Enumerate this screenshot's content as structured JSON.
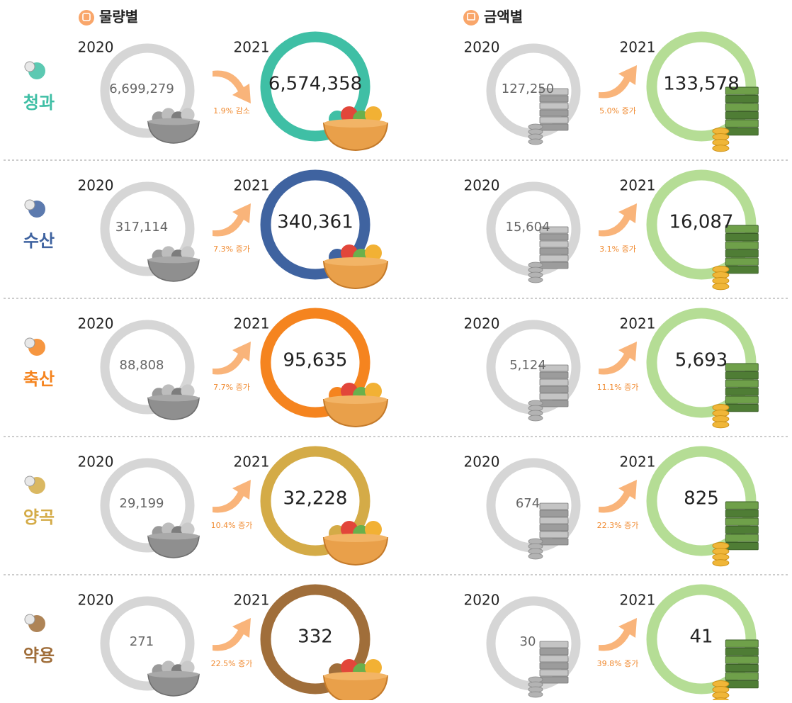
{
  "headers": {
    "volume": "물량별",
    "amount": "금액별"
  },
  "years": [
    "2020",
    "2021"
  ],
  "rows": [
    {
      "category": "청과",
      "color": "#3fbfa5",
      "volume": {
        "y2020": "6,699,279",
        "y2021": "6,574,358",
        "change": "1.9% 감소"
      },
      "amount": {
        "y2020": "127,250",
        "y2021": "133,578",
        "change": "5.0% 증가"
      }
    },
    {
      "category": "수산",
      "color": "#3f63a0",
      "volume": {
        "y2020": "317,114",
        "y2021": "340,361",
        "change": "7.3% 증가"
      },
      "amount": {
        "y2020": "15,604",
        "y2021": "16,087",
        "change": "3.1% 증가"
      }
    },
    {
      "category": "축산",
      "color": "#f5841f",
      "volume": {
        "y2020": "88,808",
        "y2021": "95,635",
        "change": "7.7% 증가"
      },
      "amount": {
        "y2020": "5,124",
        "y2021": "5,693",
        "change": "11.1% 증가"
      }
    },
    {
      "category": "양곡",
      "color": "#d4ab47",
      "volume": {
        "y2020": "29,199",
        "y2021": "32,228",
        "change": "10.4% 증가"
      },
      "amount": {
        "y2020": "674",
        "y2021": "825",
        "change": "22.3% 증가"
      }
    },
    {
      "category": "약용",
      "color": "#a06e3a",
      "volume": {
        "y2020": "271",
        "y2021": "332",
        "change": "22.5% 증가"
      },
      "amount": {
        "y2020": "30",
        "y2021": "41",
        "change": "39.8% 증가"
      }
    }
  ]
}
